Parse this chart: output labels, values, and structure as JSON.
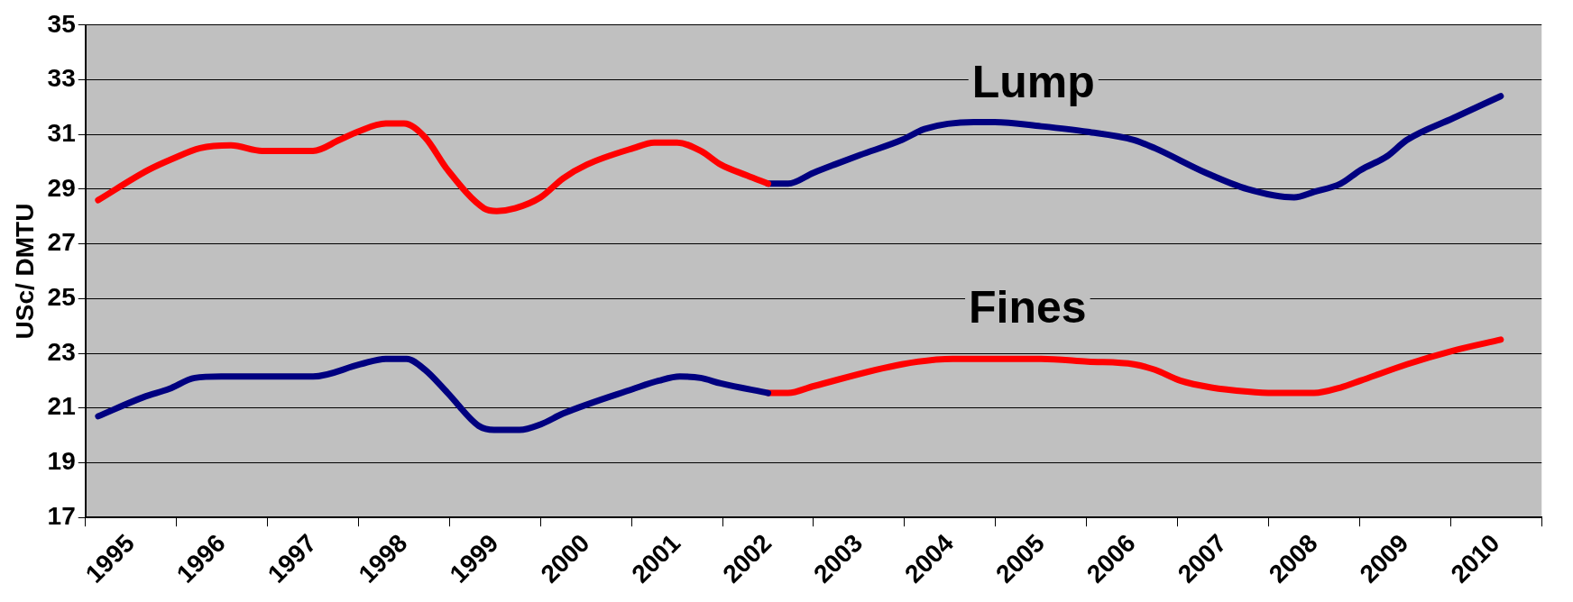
{
  "chart_data": {
    "type": "line",
    "ylabel": "USc/ DMTU",
    "ylim": [
      17,
      35
    ],
    "yticks": [
      17,
      19,
      21,
      23,
      25,
      27,
      29,
      31,
      33,
      35
    ],
    "xlim": [
      1995,
      2011
    ],
    "xticks": [
      {
        "value": 1995,
        "label": null
      },
      {
        "value": 1995.5,
        "label": "1995"
      },
      {
        "value": 1996,
        "label": null
      },
      {
        "value": 1996.5,
        "label": "1996"
      },
      {
        "value": 1997,
        "label": null
      },
      {
        "value": 1997.5,
        "label": "1997"
      },
      {
        "value": 1998,
        "label": null
      },
      {
        "value": 1998.5,
        "label": "1998"
      },
      {
        "value": 1999,
        "label": null
      },
      {
        "value": 1999.5,
        "label": "1999"
      },
      {
        "value": 2000,
        "label": null
      },
      {
        "value": 2000.5,
        "label": "2000"
      },
      {
        "value": 2001,
        "label": null
      },
      {
        "value": 2001.5,
        "label": "2001"
      },
      {
        "value": 2002,
        "label": null
      },
      {
        "value": 2002.5,
        "label": "2002"
      },
      {
        "value": 2003,
        "label": null
      },
      {
        "value": 2003.5,
        "label": "2003"
      },
      {
        "value": 2004,
        "label": null
      },
      {
        "value": 2004.5,
        "label": "2004"
      },
      {
        "value": 2005,
        "label": null
      },
      {
        "value": 2005.5,
        "label": "2005"
      },
      {
        "value": 2006,
        "label": null
      },
      {
        "value": 2006.5,
        "label": "2006"
      },
      {
        "value": 2007,
        "label": null
      },
      {
        "value": 2007.5,
        "label": "2007"
      },
      {
        "value": 2008,
        "label": null
      },
      {
        "value": 2008.5,
        "label": "2008"
      },
      {
        "value": 2009,
        "label": null
      },
      {
        "value": 2009.5,
        "label": "2009"
      },
      {
        "value": 2010,
        "label": null
      },
      {
        "value": 2010.5,
        "label": "2010"
      },
      {
        "value": 2011,
        "label": null
      }
    ],
    "grid": "y",
    "legend": false,
    "marker": "none",
    "line_style": "solid",
    "series": [
      {
        "color": "#ff0000",
        "x": [
          1995.14,
          1995.69,
          1995.95,
          1996.26,
          1996.6,
          1996.94,
          1997.5,
          1997.79,
          1997.99,
          1998.3,
          1998.5,
          1998.73,
          1998.98,
          1999.38,
          1999.52,
          1999.72,
          2000,
          2000.25,
          2000.51,
          2001.02,
          2001.25,
          2001.5,
          2001.76,
          2001.98,
          2002.27,
          2002.5
        ],
        "values": [
          28.6,
          29.7,
          30.1,
          30.5,
          30.6,
          30.4,
          30.4,
          30.8,
          31.1,
          31.4,
          31.4,
          30.9,
          29.7,
          28.3,
          28.2,
          28.3,
          28.7,
          29.4,
          29.9,
          30.5,
          30.7,
          30.7,
          30.4,
          29.9,
          29.5,
          29.2
        ]
      },
      {
        "color": "#000080",
        "x": [
          2002.5,
          2002.72,
          2003,
          2003.23,
          2003.51,
          2003.97,
          2004.22,
          2004.76,
          2004.99,
          2005.5,
          2006.01,
          2006.52,
          2006.75,
          2007.31,
          2007.77,
          2008.28,
          2008.5,
          2008.79,
          2009.01,
          2009.3,
          2009.52,
          2010.03,
          2010.55
        ],
        "values": [
          29.2,
          29.2,
          29.6,
          29.9,
          30.25,
          30.8,
          31.2,
          31.45,
          31.45,
          31.3,
          31.1,
          30.8,
          30.5,
          29.6,
          29.0,
          28.7,
          28.9,
          29.2,
          29.7,
          30.2,
          30.8,
          31.6,
          32.4
        ]
      },
      {
        "color": "#000080",
        "x": [
          1995.14,
          1995.64,
          1995.92,
          1996.2,
          1996.49,
          1996.71,
          1997.5,
          1998.02,
          1998.3,
          1998.53,
          1998.73,
          1998.98,
          1999.32,
          1999.49,
          1999.77,
          2000,
          2000.25,
          2001.02,
          2001.3,
          2001.53,
          2001.76,
          2001.98,
          2002.5
        ],
        "values": [
          20.7,
          21.4,
          21.7,
          22.1,
          22.15,
          22.15,
          22.15,
          22.6,
          22.8,
          22.8,
          22.4,
          21.55,
          20.35,
          20.2,
          20.2,
          20.4,
          20.8,
          21.7,
          22.0,
          22.15,
          22.1,
          21.9,
          21.55
        ]
      },
      {
        "color": "#ff0000",
        "x": [
          2002.5,
          2002.72,
          2003,
          2003.97,
          2004.53,
          2005.5,
          2006.01,
          2006.52,
          2006.75,
          2007.03,
          2007.37,
          2007.77,
          2008.05,
          2008.5,
          2008.79,
          2009.01,
          2009.52,
          2010.03,
          2010.55
        ],
        "values": [
          21.55,
          21.55,
          21.8,
          22.6,
          22.8,
          22.8,
          22.7,
          22.6,
          22.4,
          22.0,
          21.75,
          21.6,
          21.55,
          21.55,
          21.75,
          22.0,
          22.6,
          23.1,
          23.5
        ]
      }
    ],
    "annotations": [
      "Lump",
      "Fines"
    ]
  }
}
